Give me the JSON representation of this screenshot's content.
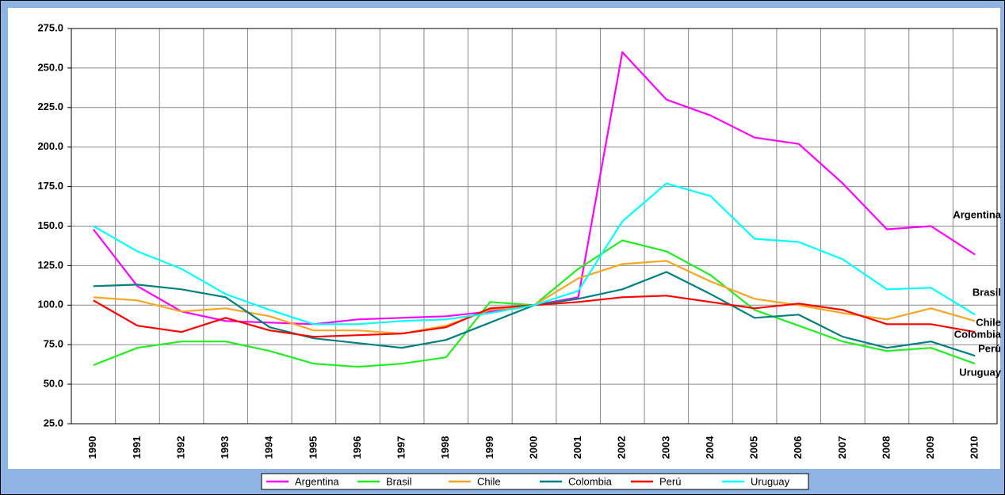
{
  "chart_data": {
    "type": "line",
    "categories": [
      "1990",
      "1991",
      "1992",
      "1993",
      "1994",
      "1995",
      "1996",
      "1997",
      "1998",
      "1999",
      "2000",
      "2001",
      "2002",
      "2003",
      "2004",
      "2005",
      "2006",
      "2007",
      "2008",
      "2009",
      "2010"
    ],
    "series": [
      {
        "name": "Argentina",
        "color": "#ff00ff",
        "values": [
          148,
          112,
          96,
          90,
          89,
          88,
          91,
          92,
          93,
          96,
          100,
          105,
          260,
          230,
          220,
          206,
          202,
          177,
          148,
          150,
          132
        ]
      },
      {
        "name": "Brasil",
        "color": "#22ee22",
        "values": [
          62,
          73,
          77,
          77,
          71,
          63,
          61,
          63,
          67,
          102,
          100,
          123,
          141,
          134,
          119,
          97,
          87,
          77,
          71,
          73,
          63
        ]
      },
      {
        "name": "Chile",
        "color": "#f5a623",
        "values": [
          105,
          103,
          96,
          98,
          93,
          84,
          84,
          82,
          87,
          97,
          100,
          117,
          126,
          128,
          115,
          104,
          100,
          95,
          91,
          98,
          90
        ]
      },
      {
        "name": "Colombia",
        "color": "#008080",
        "values": [
          112,
          113,
          110,
          105,
          86,
          79,
          76,
          73,
          78,
          89,
          100,
          104,
          110,
          121,
          107,
          92,
          94,
          80,
          73,
          77,
          68
        ]
      },
      {
        "name": "Perú",
        "color": "#ff0000",
        "values": [
          103,
          87,
          83,
          92,
          84,
          80,
          81,
          82,
          86,
          98,
          100,
          102,
          105,
          106,
          102,
          98,
          101,
          97,
          88,
          88,
          83
        ]
      },
      {
        "name": "Uruguay",
        "color": "#00ffff",
        "values": [
          150,
          134,
          123,
          107,
          97,
          88,
          88,
          90,
          91,
          95,
          100,
          109,
          153,
          177,
          169,
          142,
          140,
          129,
          110,
          111,
          94
        ]
      }
    ],
    "ylim": [
      25,
      275
    ],
    "yticks": [
      {
        "value": 25,
        "label": "25.0"
      },
      {
        "value": 50,
        "label": "50.0"
      },
      {
        "value": 75,
        "label": "75.0"
      },
      {
        "value": 100,
        "label": "100.0"
      },
      {
        "value": 125,
        "label": "125.0"
      },
      {
        "value": 150,
        "label": "150.0"
      },
      {
        "value": 175,
        "label": "175.0"
      },
      {
        "value": 200,
        "label": "200.0"
      },
      {
        "value": 225,
        "label": "225.0"
      },
      {
        "value": 250,
        "label": "250.0"
      },
      {
        "value": 275,
        "label": "275.0"
      }
    ],
    "grid": true,
    "legend": "bottom"
  }
}
